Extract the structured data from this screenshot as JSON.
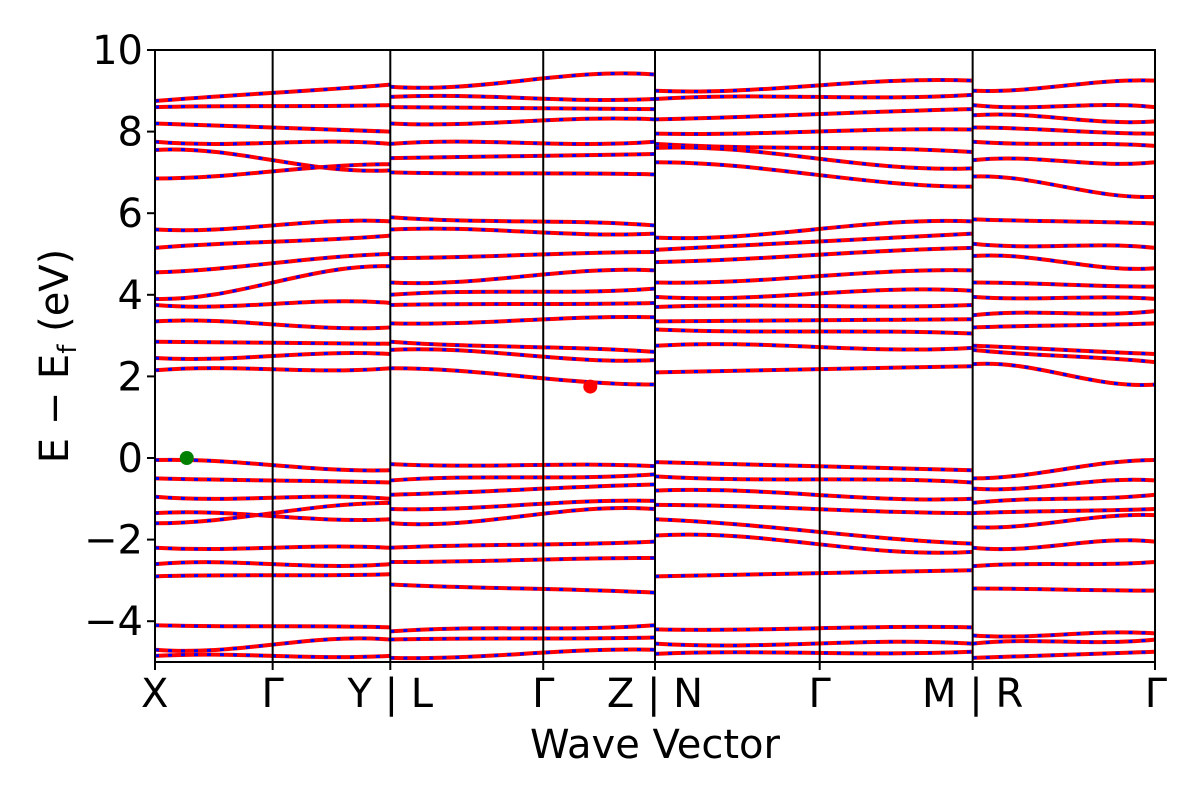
{
  "chart_data": {
    "type": "line",
    "xlabel": "Wave Vector",
    "ylabel": "E − E",
    "ylabel_sub": "f",
    "ylabel_unit": " (eV)",
    "ylim": [
      -5,
      10
    ],
    "yticks": [
      -4,
      -2,
      0,
      2,
      4,
      6,
      8,
      10
    ],
    "ytick_labels": [
      "−4",
      "−2",
      "0",
      "2",
      "4",
      "6",
      "8",
      "10"
    ],
    "xticks": [
      0,
      1,
      2,
      3.3,
      4.25,
      5.65,
      6.95,
      8.5
    ],
    "xtick_labels": [
      "X",
      "Γ",
      "Y | L",
      "Γ",
      "Z | N",
      "Γ",
      "M | R",
      "Γ"
    ],
    "xlim": [
      0,
      8.5
    ],
    "band_colors": {
      "primary": "#ff0000",
      "secondary": "#0000ff"
    },
    "highlight_points": [
      {
        "name": "valence-band-maximum",
        "x": 0.27,
        "y": 0.0,
        "color": "#008000"
      },
      {
        "name": "conduction-band-minimum",
        "x": 3.7,
        "y": 1.75,
        "color": "#ff0000"
      }
    ],
    "segments": [
      {
        "x0": 0,
        "x1": 2,
        "bands": [
          {
            "y0": 8.75,
            "y1": 9.15
          },
          {
            "y0": 8.6,
            "y1": 8.65
          },
          {
            "y0": 8.2,
            "y1": 8.0
          },
          {
            "y0": 7.75,
            "y1": 7.7
          },
          {
            "y0": 7.55,
            "y1": 7.05
          },
          {
            "y0": 6.85,
            "y1": 7.2
          },
          {
            "y0": 5.6,
            "y1": 5.8
          },
          {
            "y0": 5.15,
            "y1": 5.45
          },
          {
            "y0": 4.55,
            "y1": 5.0
          },
          {
            "y0": 3.9,
            "y1": 4.7
          },
          {
            "y0": 3.75,
            "y1": 3.8
          },
          {
            "y0": 3.35,
            "y1": 3.2
          },
          {
            "y0": 2.85,
            "y1": 2.8
          },
          {
            "y0": 2.45,
            "y1": 2.55
          },
          {
            "y0": 2.15,
            "y1": 2.2
          },
          {
            "y0": -0.05,
            "y1": -0.3
          },
          {
            "y0": -0.5,
            "y1": -0.6
          },
          {
            "y0": -0.95,
            "y1": -1.0
          },
          {
            "y0": -1.35,
            "y1": -1.5
          },
          {
            "y0": -1.6,
            "y1": -1.1
          },
          {
            "y0": -2.2,
            "y1": -2.2
          },
          {
            "y0": -2.6,
            "y1": -2.6
          },
          {
            "y0": -2.9,
            "y1": -2.85
          },
          {
            "y0": -4.1,
            "y1": -4.15
          },
          {
            "y0": -4.7,
            "y1": -4.45
          },
          {
            "y0": -4.85,
            "y1": -4.85
          }
        ]
      },
      {
        "x0": 2,
        "x1": 4.25,
        "bands": [
          {
            "y0": 9.1,
            "y1": 9.4
          },
          {
            "y0": 8.85,
            "y1": 8.8
          },
          {
            "y0": 8.6,
            "y1": 8.55
          },
          {
            "y0": 8.2,
            "y1": 8.3
          },
          {
            "y0": 7.7,
            "y1": 7.75
          },
          {
            "y0": 7.35,
            "y1": 7.45
          },
          {
            "y0": 7.0,
            "y1": 6.95
          },
          {
            "y0": 5.9,
            "y1": 5.7
          },
          {
            "y0": 5.6,
            "y1": 5.5
          },
          {
            "y0": 4.9,
            "y1": 5.05
          },
          {
            "y0": 4.3,
            "y1": 4.6
          },
          {
            "y0": 4.0,
            "y1": 4.15
          },
          {
            "y0": 3.75,
            "y1": 3.8
          },
          {
            "y0": 3.3,
            "y1": 3.45
          },
          {
            "y0": 2.85,
            "y1": 2.6
          },
          {
            "y0": 2.65,
            "y1": 2.4
          },
          {
            "y0": 2.2,
            "y1": 1.8
          },
          {
            "y0": -0.15,
            "y1": -0.2
          },
          {
            "y0": -0.55,
            "y1": -0.4
          },
          {
            "y0": -0.9,
            "y1": -0.65
          },
          {
            "y0": -1.25,
            "y1": -1.05
          },
          {
            "y0": -1.6,
            "y1": -1.25
          },
          {
            "y0": -2.2,
            "y1": -2.05
          },
          {
            "y0": -2.55,
            "y1": -2.45
          },
          {
            "y0": -3.1,
            "y1": -3.3
          },
          {
            "y0": -4.25,
            "y1": -4.1
          },
          {
            "y0": -4.45,
            "y1": -4.4
          },
          {
            "y0": -4.9,
            "y1": -4.7
          }
        ]
      },
      {
        "x0": 4.25,
        "x1": 6.95,
        "bands": [
          {
            "y0": 9.0,
            "y1": 9.25
          },
          {
            "y0": 8.8,
            "y1": 8.9
          },
          {
            "y0": 8.3,
            "y1": 8.55
          },
          {
            "y0": 7.95,
            "y1": 8.05
          },
          {
            "y0": 7.7,
            "y1": 7.5
          },
          {
            "y0": 7.6,
            "y1": 7.1
          },
          {
            "y0": 7.25,
            "y1": 6.65
          },
          {
            "y0": 5.4,
            "y1": 5.8
          },
          {
            "y0": 5.1,
            "y1": 5.5
          },
          {
            "y0": 4.8,
            "y1": 5.15
          },
          {
            "y0": 4.3,
            "y1": 4.6
          },
          {
            "y0": 3.95,
            "y1": 4.1
          },
          {
            "y0": 3.7,
            "y1": 3.75
          },
          {
            "y0": 3.35,
            "y1": 3.4
          },
          {
            "y0": 3.15,
            "y1": 3.05
          },
          {
            "y0": 2.75,
            "y1": 2.7
          },
          {
            "y0": 2.1,
            "y1": 2.25
          },
          {
            "y0": -0.1,
            "y1": -0.3
          },
          {
            "y0": -0.45,
            "y1": -0.6
          },
          {
            "y0": -0.8,
            "y1": -1.0
          },
          {
            "y0": -1.15,
            "y1": -1.35
          },
          {
            "y0": -1.5,
            "y1": -2.1
          },
          {
            "y0": -1.9,
            "y1": -2.3
          },
          {
            "y0": -2.9,
            "y1": -2.75
          },
          {
            "y0": -4.2,
            "y1": -4.15
          },
          {
            "y0": -4.55,
            "y1": -4.55
          },
          {
            "y0": -4.8,
            "y1": -4.75
          }
        ]
      },
      {
        "x0": 6.95,
        "x1": 8.5,
        "bands": [
          {
            "y0": 9.0,
            "y1": 9.25
          },
          {
            "y0": 8.65,
            "y1": 8.6
          },
          {
            "y0": 8.4,
            "y1": 8.25
          },
          {
            "y0": 8.1,
            "y1": 7.95
          },
          {
            "y0": 7.75,
            "y1": 7.65
          },
          {
            "y0": 7.3,
            "y1": 7.25
          },
          {
            "y0": 6.9,
            "y1": 6.4
          },
          {
            "y0": 5.85,
            "y1": 5.75
          },
          {
            "y0": 5.25,
            "y1": 5.15
          },
          {
            "y0": 4.95,
            "y1": 4.65
          },
          {
            "y0": 4.3,
            "y1": 4.2
          },
          {
            "y0": 3.95,
            "y1": 3.9
          },
          {
            "y0": 3.5,
            "y1": 3.6
          },
          {
            "y0": 3.2,
            "y1": 3.3
          },
          {
            "y0": 2.75,
            "y1": 2.55
          },
          {
            "y0": 2.65,
            "y1": 2.35
          },
          {
            "y0": 2.3,
            "y1": 1.8
          },
          {
            "y0": -0.5,
            "y1": -0.05
          },
          {
            "y0": -0.75,
            "y1": -0.55
          },
          {
            "y0": -1.1,
            "y1": -0.9
          },
          {
            "y0": -1.35,
            "y1": -1.25
          },
          {
            "y0": -1.7,
            "y1": -1.4
          },
          {
            "y0": -2.2,
            "y1": -2.05
          },
          {
            "y0": -2.65,
            "y1": -2.55
          },
          {
            "y0": -3.2,
            "y1": -3.25
          },
          {
            "y0": -4.35,
            "y1": -4.3
          },
          {
            "y0": -4.55,
            "y1": -4.45
          },
          {
            "y0": -4.9,
            "y1": -4.75
          }
        ]
      }
    ]
  }
}
